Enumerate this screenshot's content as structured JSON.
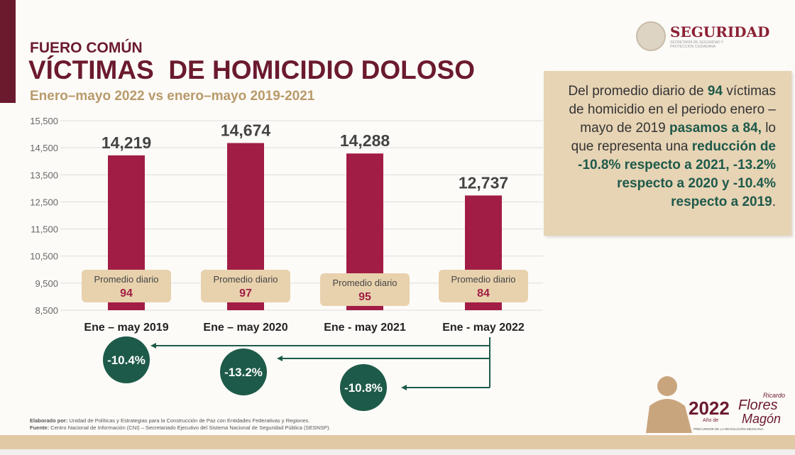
{
  "header": {
    "section": "FUERO COMÚN",
    "title": "VÍCTIMAS  DE HOMICIDIO DOLOSO",
    "subtitle": "Enero–mayo 2022 vs enero–mayo 2019-2021"
  },
  "logo": {
    "name": "SEGURIDAD",
    "subtitle": "SECRETARÍA DE SEGURIDAD Y PROTECCIÓN CIUDADANA"
  },
  "summary": {
    "t1": "Del promedio diario de ",
    "b1": "94",
    "t2": " víctimas de homicidio en el periodo enero – mayo de 2019 ",
    "b2": "pasamos a 84,",
    "t3": " lo que representa una ",
    "b3": "reducción de -10.8% respecto a 2021, -13.2% respecto a 2020 y -10.4% respecto a 2019",
    "t4": "."
  },
  "chart_data": {
    "type": "bar",
    "categories": [
      "Ene – may 2019",
      "Ene – may 2020",
      "Ene - may 2021",
      "Ene - may 2022"
    ],
    "values": [
      14219,
      14674,
      14288,
      12737
    ],
    "value_labels": [
      "14,219",
      "14,674",
      "14,288",
      "12,737"
    ],
    "daily_avg_label": "Promedio diario",
    "daily_avg": [
      94,
      97,
      95,
      84
    ],
    "yticks": [
      "8,500",
      "9,500",
      "10,500",
      "11,500",
      "12,500",
      "13,500",
      "14,500",
      "15,500"
    ],
    "ytick_values": [
      8500,
      9500,
      10500,
      11500,
      12500,
      13500,
      14500,
      15500
    ],
    "ylim": [
      8500,
      15500
    ],
    "changes": [
      "-10.4%",
      "-13.2%",
      "-10.8%"
    ],
    "colors": {
      "bar": "#a11d45",
      "circle": "#1e5a4a",
      "avgbox": "#e8d2ad"
    }
  },
  "footer": {
    "made_label": "Elaborado por:",
    "made": " Unidad de Políticas y Estrategias para la Construcción de Paz con Entidades Federativas y Regiones.",
    "source_label": "Fuente:",
    "source": " Centro Nacional de Información (CNI) – Secretariado Ejecutivo del Sistema Nacional de Seguridad Pública (SESNSP)."
  },
  "magon": {
    "year": "2022",
    "a": "Año de",
    "name1": "Ricardo",
    "name2": "Flores",
    "name3": "Magón",
    "tag": "PRECURSOR DE LA REVOLUCIÓN MEXICANA"
  }
}
